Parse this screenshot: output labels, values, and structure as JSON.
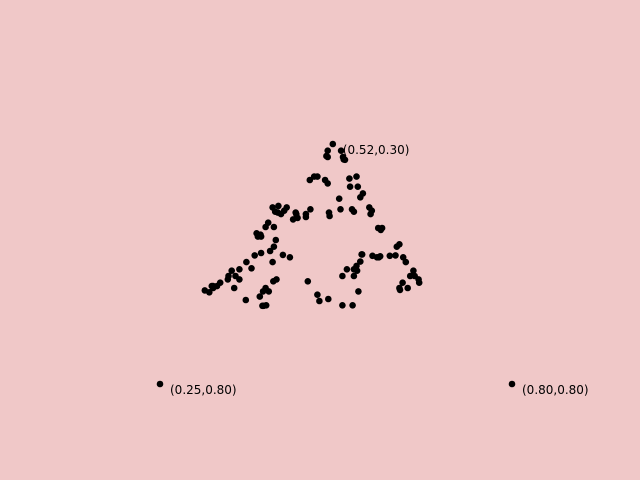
{
  "background": "#f0c8c8",
  "point_color": "#000000",
  "chart_data": {
    "type": "scatter",
    "title": "",
    "xlabel": "",
    "ylabel": "",
    "grid": false,
    "axes_visible": false,
    "xlim": [
      0.25,
      0.8
    ],
    "ylim": [
      0.3,
      0.8
    ],
    "y_inverted": true,
    "vertex_labels": [
      {
        "text": "(0.52,0.30)",
        "x": 0.52,
        "y": 0.3,
        "placement": "right"
      },
      {
        "text": "(0.25,0.80)",
        "x": 0.25,
        "y": 0.8,
        "placement": "right"
      },
      {
        "text": "(0.80,0.80)",
        "x": 0.8,
        "y": 0.8,
        "placement": "right"
      }
    ],
    "points": [
      [
        0.52,
        0.3
      ],
      [
        0.512,
        0.314
      ],
      [
        0.533,
        0.314
      ],
      [
        0.512,
        0.327
      ],
      [
        0.51,
        0.325
      ],
      [
        0.536,
        0.327
      ],
      [
        0.539,
        0.333
      ],
      [
        0.537,
        0.332
      ],
      [
        0.496,
        0.368
      ],
      [
        0.491,
        0.368
      ],
      [
        0.484,
        0.375
      ],
      [
        0.508,
        0.375
      ],
      [
        0.512,
        0.382
      ],
      [
        0.546,
        0.372
      ],
      [
        0.557,
        0.368
      ],
      [
        0.559,
        0.389
      ],
      [
        0.547,
        0.389
      ],
      [
        0.567,
        0.403
      ],
      [
        0.563,
        0.411
      ],
      [
        0.53,
        0.414
      ],
      [
        0.448,
        0.432
      ],
      [
        0.444,
        0.439
      ],
      [
        0.426,
        0.432
      ],
      [
        0.435,
        0.429
      ],
      [
        0.43,
        0.441
      ],
      [
        0.434,
        0.443
      ],
      [
        0.439,
        0.446
      ],
      [
        0.485,
        0.436
      ],
      [
        0.514,
        0.443
      ],
      [
        0.515,
        0.45
      ],
      [
        0.532,
        0.436
      ],
      [
        0.55,
        0.436
      ],
      [
        0.553,
        0.441
      ],
      [
        0.577,
        0.432
      ],
      [
        0.581,
        0.439
      ],
      [
        0.579,
        0.446
      ],
      [
        0.462,
        0.443
      ],
      [
        0.463,
        0.446
      ],
      [
        0.458,
        0.457
      ],
      [
        0.465,
        0.454
      ],
      [
        0.478,
        0.446
      ],
      [
        0.478,
        0.452
      ],
      [
        0.419,
        0.464
      ],
      [
        0.415,
        0.473
      ],
      [
        0.428,
        0.473
      ],
      [
        0.591,
        0.475
      ],
      [
        0.597,
        0.475
      ],
      [
        0.595,
        0.479
      ],
      [
        0.401,
        0.486
      ],
      [
        0.403,
        0.493
      ],
      [
        0.408,
        0.493
      ],
      [
        0.407,
        0.489
      ],
      [
        0.431,
        0.5
      ],
      [
        0.428,
        0.514
      ],
      [
        0.422,
        0.523
      ],
      [
        0.408,
        0.527
      ],
      [
        0.426,
        0.546
      ],
      [
        0.398,
        0.532
      ],
      [
        0.385,
        0.546
      ],
      [
        0.393,
        0.559
      ],
      [
        0.374,
        0.561
      ],
      [
        0.442,
        0.531
      ],
      [
        0.453,
        0.536
      ],
      [
        0.565,
        0.53
      ],
      [
        0.566,
        0.53
      ],
      [
        0.582,
        0.533
      ],
      [
        0.589,
        0.536
      ],
      [
        0.594,
        0.534
      ],
      [
        0.609,
        0.533
      ],
      [
        0.592,
        0.536
      ],
      [
        0.62,
        0.514
      ],
      [
        0.624,
        0.509
      ],
      [
        0.618,
        0.532
      ],
      [
        0.63,
        0.536
      ],
      [
        0.634,
        0.546
      ],
      [
        0.646,
        0.564
      ],
      [
        0.648,
        0.575
      ],
      [
        0.641,
        0.575
      ],
      [
        0.654,
        0.582
      ],
      [
        0.655,
        0.589
      ],
      [
        0.629,
        0.589
      ],
      [
        0.624,
        0.6
      ],
      [
        0.625,
        0.604
      ],
      [
        0.637,
        0.6
      ],
      [
        0.563,
        0.545
      ],
      [
        0.557,
        0.554
      ],
      [
        0.553,
        0.561
      ],
      [
        0.558,
        0.564
      ],
      [
        0.542,
        0.561
      ],
      [
        0.535,
        0.575
      ],
      [
        0.553,
        0.575
      ],
      [
        0.362,
        0.564
      ],
      [
        0.357,
        0.575
      ],
      [
        0.368,
        0.575
      ],
      [
        0.374,
        0.582
      ],
      [
        0.356,
        0.582
      ],
      [
        0.366,
        0.6
      ],
      [
        0.344,
        0.589
      ],
      [
        0.339,
        0.596
      ],
      [
        0.333,
        0.596
      ],
      [
        0.333,
        0.6
      ],
      [
        0.331,
        0.596
      ],
      [
        0.32,
        0.605
      ],
      [
        0.327,
        0.609
      ],
      [
        0.432,
        0.582
      ],
      [
        0.427,
        0.586
      ],
      [
        0.415,
        0.6
      ],
      [
        0.42,
        0.607
      ],
      [
        0.411,
        0.607
      ],
      [
        0.406,
        0.618
      ],
      [
        0.384,
        0.625
      ],
      [
        0.41,
        0.637
      ],
      [
        0.416,
        0.636
      ],
      [
        0.412,
        0.637
      ],
      [
        0.481,
        0.586
      ],
      [
        0.496,
        0.614
      ],
      [
        0.499,
        0.627
      ],
      [
        0.513,
        0.623
      ],
      [
        0.56,
        0.607
      ],
      [
        0.551,
        0.636
      ],
      [
        0.535,
        0.636
      ],
      [
        0.25,
        0.8
      ]
    ]
  }
}
